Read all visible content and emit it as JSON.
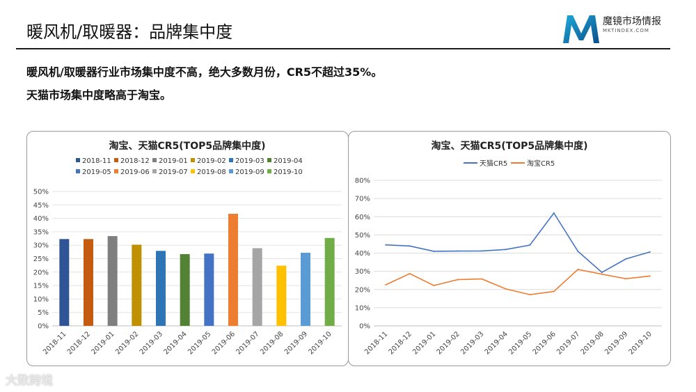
{
  "page": {
    "title": "暖风机/取暖器：品牌集中度",
    "line1": "暖风机/取暖器行业市场集中度不高，绝大多数月份，CR5不超过35%。",
    "line2": "天猫市场集中度略高于淘宝。",
    "logo_text": "魔镜市场情报",
    "logo_sub": "MKTINDEX.COM",
    "watermark": "大数跨境"
  },
  "chart_data": [
    {
      "type": "bar",
      "title": "淘宝、天猫CR5(TOP5品牌集中度)",
      "categories": [
        "2018-11",
        "2018-12",
        "2019-01",
        "2019-02",
        "2019-03",
        "2019-04",
        "2019-05",
        "2019-06",
        "2019-07",
        "2019-08",
        "2019-09",
        "2019-10"
      ],
      "values": [
        32.3,
        32.3,
        33.4,
        30.2,
        27.9,
        26.7,
        26.9,
        41.7,
        28.9,
        22.4,
        27.2,
        32.7
      ],
      "colors": [
        "#2F5597",
        "#C55A11",
        "#7F7F7F",
        "#BF9000",
        "#2E75B6",
        "#548235",
        "#4472C4",
        "#ED7D31",
        "#A5A5A5",
        "#FFC000",
        "#5B9BD5",
        "#70AD47"
      ],
      "legend_position": "top",
      "ylim": [
        0,
        50
      ],
      "yticks": [
        "0%",
        "5%",
        "10%",
        "15%",
        "20%",
        "25%",
        "30%",
        "35%",
        "40%",
        "45%",
        "50%"
      ],
      "grid": true
    },
    {
      "type": "line",
      "title": "淘宝、天猫CR5(TOP5品牌集中度)",
      "categories": [
        "2018-11",
        "2018-12",
        "2019-01",
        "2019-02",
        "2019-03",
        "2019-04",
        "2019-05",
        "2019-06",
        "2019-07",
        "2019-08",
        "2019-09",
        "2019-10"
      ],
      "series": [
        {
          "name": "天猫CR5",
          "color": "#4472C4",
          "values": [
            44.5,
            43.9,
            41.0,
            41.1,
            41.2,
            42.0,
            44.4,
            62.0,
            41.0,
            29.4,
            36.8,
            40.6
          ]
        },
        {
          "name": "淘宝CR5",
          "color": "#ED7D31",
          "values": [
            22.6,
            28.7,
            22.2,
            25.4,
            25.8,
            20.3,
            17.2,
            18.9,
            31.0,
            28.4,
            25.9,
            27.4
          ]
        }
      ],
      "legend_position": "top",
      "ylim": [
        0,
        80
      ],
      "yticks": [
        "0%",
        "10%",
        "20%",
        "30%",
        "40%",
        "50%",
        "60%",
        "70%",
        "80%"
      ],
      "grid": true
    }
  ]
}
